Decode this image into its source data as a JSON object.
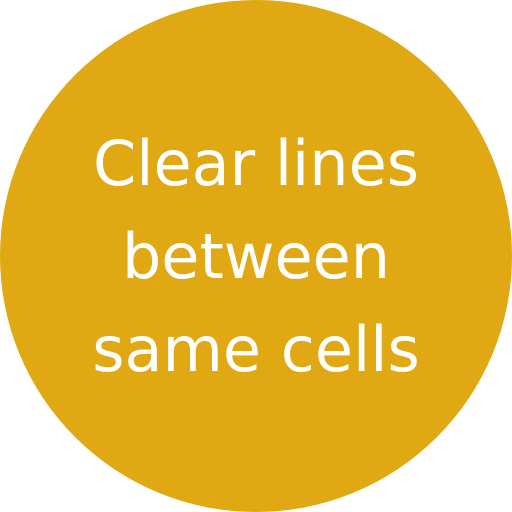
{
  "badge": {
    "lines": [
      "Clear lines",
      "between",
      "same cells"
    ],
    "background_color": "#E0A813",
    "text_color": "#FFFFFF"
  }
}
